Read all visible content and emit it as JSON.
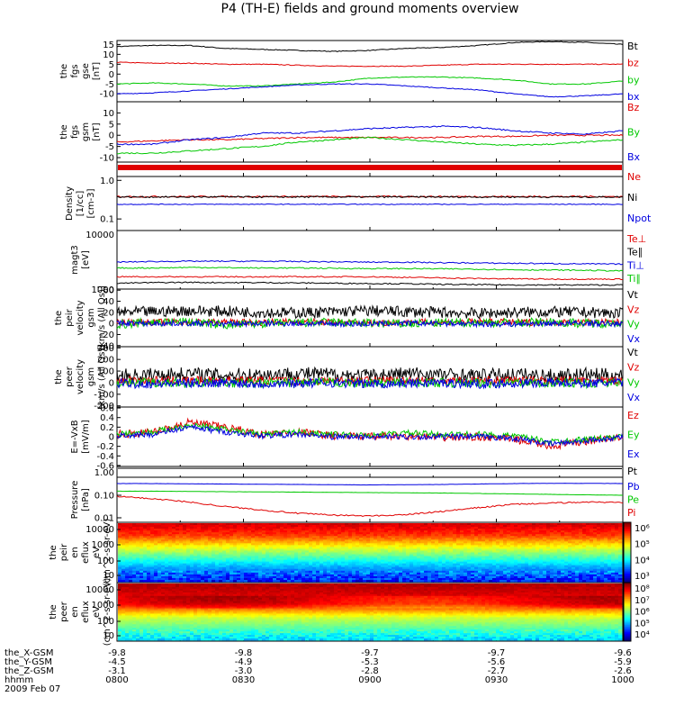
{
  "title": "P4 (TH-E) fields and ground moments overview",
  "colors": {
    "black": "#000000",
    "red": "#e00000",
    "green": "#00c800",
    "blue": "#0000e0",
    "frame": "#000000"
  },
  "chart_data": [
    {
      "type": "line",
      "ylabel": [
        "the",
        "fgs",
        "gse",
        "[nT]"
      ],
      "yticks": [
        15,
        10,
        5,
        0,
        -5,
        -10
      ],
      "ylim": [
        -14,
        17
      ],
      "series": [
        {
          "name": "Bt",
          "color": "black",
          "values": [
            14,
            14.5,
            14.5,
            13,
            12.5,
            12,
            11.5,
            12,
            13,
            13.5,
            14.5,
            16,
            16.5,
            16,
            15
          ]
        },
        {
          "name": "bz",
          "color": "red",
          "values": [
            6,
            5.5,
            5.5,
            5,
            5,
            4.5,
            4,
            4,
            4,
            4.5,
            5,
            5,
            5,
            5,
            5
          ]
        },
        {
          "name": "by",
          "color": "green",
          "values": [
            -5,
            -4.5,
            -5,
            -6,
            -6,
            -5,
            -4,
            -2,
            -1.5,
            -1.5,
            -2,
            -3,
            -5,
            -5,
            -3.5
          ]
        },
        {
          "name": "bx",
          "color": "blue",
          "values": [
            -10,
            -9.5,
            -8.5,
            -7.5,
            -6.5,
            -5.5,
            -5,
            -5,
            -6,
            -7,
            -8,
            -10,
            -11.5,
            -11,
            -10
          ]
        }
      ]
    },
    {
      "type": "line",
      "ylabel": [
        "the",
        "fgs",
        "gsm",
        "[nT]"
      ],
      "yticks": [
        10,
        5,
        0,
        -5,
        -10
      ],
      "ylim": [
        -12,
        15
      ],
      "series": [
        {
          "name": "Bz",
          "color": "red",
          "values": [
            -3,
            -2.5,
            -2,
            -2,
            -1.5,
            -1,
            -1,
            -1,
            -1,
            -1,
            -0.5,
            -0.5,
            0,
            0,
            0
          ]
        },
        {
          "name": "By",
          "color": "green",
          "values": [
            -8,
            -8,
            -7,
            -6,
            -5,
            -3,
            -2,
            -1,
            -2,
            -3,
            -4,
            -4.5,
            -4,
            -3,
            -2
          ]
        },
        {
          "name": "Bx",
          "color": "blue",
          "values": [
            -4,
            -4,
            -2,
            -1,
            1,
            1,
            2,
            3,
            3.5,
            4,
            3.5,
            2,
            1,
            0.5,
            2
          ]
        }
      ]
    },
    {
      "type": "line",
      "ylabel": [
        "Density",
        "[1/cc]",
        "[cm-3]"
      ],
      "yticks_label": [
        "1.0",
        "0.1"
      ],
      "ylim": [
        -1.3,
        0.1
      ],
      "log": true,
      "series": [
        {
          "name": "Ne",
          "color": "red",
          "values": [
            -0.42,
            -0.42,
            -0.42,
            -0.42,
            -0.42,
            -0.42,
            -0.42,
            -0.42,
            -0.42,
            -0.42,
            -0.42,
            -0.42,
            -0.42,
            -0.42,
            -0.42
          ]
        },
        {
          "name": "Ni",
          "color": "black",
          "values": [
            -0.43,
            -0.43,
            -0.43,
            -0.43,
            -0.43,
            -0.43,
            -0.43,
            -0.43,
            -0.43,
            -0.43,
            -0.43,
            -0.43,
            -0.43,
            -0.43,
            -0.43
          ]
        },
        {
          "name": "Npot",
          "color": "blue",
          "values": [
            -0.62,
            -0.62,
            -0.62,
            -0.62,
            -0.62,
            -0.62,
            -0.62,
            -0.62,
            -0.62,
            -0.62,
            -0.62,
            -0.62,
            -0.62,
            -0.62,
            -0.62
          ]
        }
      ]
    },
    {
      "type": "line",
      "ylabel": [
        "magt3",
        "[eV]"
      ],
      "yticks_label": [
        "10000",
        "1000"
      ],
      "log": true,
      "series": [
        {
          "name": "Te⊥",
          "color": "red",
          "values": [
            2.42,
            2.42,
            2.42,
            2.42,
            2.42,
            2.42,
            2.42,
            2.42,
            2.4,
            2.38,
            2.36,
            2.35,
            2.34,
            2.34,
            2.34
          ]
        },
        {
          "name": "Te∥",
          "color": "black",
          "values": [
            2.2,
            2.22,
            2.23,
            2.22,
            2.22,
            2.21,
            2.2,
            2.19,
            2.18,
            2.16,
            2.15,
            2.14,
            2.14,
            2.14,
            2.14
          ]
        },
        {
          "name": "Ti⊥",
          "color": "blue",
          "values": [
            2.92,
            2.94,
            2.95,
            2.95,
            2.95,
            2.94,
            2.93,
            2.92,
            2.92,
            2.9,
            2.89,
            2.88,
            2.87,
            2.86,
            2.85
          ]
        },
        {
          "name": "Ti∥",
          "color": "green",
          "values": [
            2.72,
            2.72,
            2.74,
            2.73,
            2.72,
            2.72,
            2.71,
            2.7,
            2.7,
            2.69,
            2.68,
            2.66,
            2.65,
            2.64,
            2.62
          ]
        }
      ]
    },
    {
      "type": "line",
      "ylabel": [
        "the",
        "peir",
        "velocity",
        "gsm",
        "[km/s (All Qs)]"
      ],
      "yticks": [
        60,
        40,
        20,
        0,
        -20,
        -40
      ],
      "ylim": [
        -42,
        62
      ],
      "series": [
        {
          "name": "Vt",
          "color": "black",
          "values": [
            20,
            21,
            23,
            22,
            20,
            19,
            21,
            23,
            21,
            20,
            18,
            20,
            21,
            20,
            18
          ]
        },
        {
          "name": "Vz",
          "color": "red",
          "values": [
            3,
            2,
            3,
            2,
            2,
            3,
            2,
            1,
            2,
            2,
            3,
            2,
            2,
            2,
            2
          ]
        },
        {
          "name": "Vy",
          "color": "green",
          "values": [
            -2,
            2,
            3,
            -3,
            0,
            1,
            2,
            0,
            -1,
            1,
            2,
            1,
            3,
            0,
            1
          ]
        },
        {
          "name": "Vx",
          "color": "blue",
          "values": [
            0,
            0,
            0,
            -1,
            0,
            0,
            -1,
            -1,
            0,
            0,
            -1,
            -1,
            0,
            0,
            -1
          ]
        }
      ]
    },
    {
      "type": "line",
      "ylabel": [
        "the",
        "peer",
        "velocity",
        "gsm",
        "[km/s (All Qs)]"
      ],
      "yticks": [
        300,
        200,
        100,
        0,
        -100,
        -200
      ],
      "ylim": [
        -210,
        310
      ],
      "series": [
        {
          "name": "Vt",
          "color": "black",
          "values": [
            60,
            70,
            75,
            65,
            70,
            80,
            70,
            60,
            80,
            70,
            60,
            70,
            60,
            70,
            60
          ]
        },
        {
          "name": "Vz",
          "color": "red",
          "values": [
            20,
            20,
            18,
            22,
            20,
            15,
            18,
            20,
            22,
            20,
            18,
            20,
            20,
            18,
            20
          ]
        },
        {
          "name": "Vy",
          "color": "green",
          "values": [
            0,
            0,
            -5,
            0,
            -5,
            0,
            0,
            -5,
            0,
            0,
            -5,
            0,
            0,
            -5,
            0
          ]
        },
        {
          "name": "Vx",
          "color": "blue",
          "values": [
            -5,
            -10,
            -5,
            0,
            -10,
            -5,
            0,
            -10,
            -5,
            0,
            -10,
            -5,
            0,
            -5,
            0
          ]
        }
      ]
    },
    {
      "type": "line",
      "ylabel": [
        "E=-VxB",
        "[mV/m]"
      ],
      "yticks": [
        0.6,
        0.4,
        0.2,
        0.0,
        -0.2,
        -0.4,
        -0.6
      ],
      "ylim": [
        -0.62,
        0.62
      ],
      "series": [
        {
          "name": "Ez",
          "color": "red",
          "values": [
            0.05,
            0.1,
            0.3,
            0.2,
            0.05,
            0.1,
            0.02,
            0,
            0.02,
            -0.02,
            0,
            -0.05,
            -0.2,
            -0.1,
            0
          ]
        },
        {
          "name": "Ey",
          "color": "green",
          "values": [
            0.05,
            0.1,
            0.25,
            0.15,
            0.05,
            0.1,
            0.05,
            0.03,
            0.08,
            0.05,
            0.05,
            0.02,
            -0.1,
            -0.05,
            0
          ]
        },
        {
          "name": "Ex",
          "color": "blue",
          "values": [
            0.02,
            0.05,
            0.2,
            0.1,
            0.02,
            0.05,
            0,
            0,
            0,
            0,
            0,
            -0.03,
            -0.15,
            -0.08,
            0
          ]
        }
      ]
    },
    {
      "type": "line",
      "ylabel": [],
      "yticks_label": [
        "1.00"
      ],
      "log": true,
      "series": [
        {
          "name": "Pt",
          "color": "black",
          "values": [
            0.08,
            0.08,
            0.08,
            0.08,
            0.08,
            0.08,
            0.08,
            0.08,
            0.08,
            0.08,
            0.08,
            0.08,
            0.08,
            0.08,
            0.08
          ]
        }
      ]
    },
    {
      "type": "line",
      "ylabel": [
        "Pressure",
        "[nPa]"
      ],
      "yticks_label": [
        "0.10",
        "0.01"
      ],
      "log": true,
      "series": [
        {
          "name": "Pb",
          "color": "blue",
          "values": [
            -0.48,
            -0.48,
            -0.49,
            -0.5,
            -0.51,
            -0.52,
            -0.53,
            -0.54,
            -0.53,
            -0.52,
            -0.5,
            -0.48,
            -0.47,
            -0.47,
            -0.48
          ]
        },
        {
          "name": "Pe",
          "color": "green",
          "values": [
            -0.82,
            -0.82,
            -0.83,
            -0.84,
            -0.85,
            -0.86,
            -0.87,
            -0.88,
            -0.89,
            -0.9,
            -0.92,
            -0.94,
            -0.96,
            -0.98,
            -1.0
          ]
        },
        {
          "name": "Pi",
          "color": "red",
          "values": [
            -1.05,
            -1.15,
            -1.3,
            -1.5,
            -1.65,
            -1.8,
            -1.88,
            -1.92,
            -1.86,
            -1.72,
            -1.55,
            -1.4,
            -1.35,
            -1.3,
            -1.32
          ]
        }
      ]
    },
    {
      "type": "heatmap",
      "ylabel": [
        "the",
        "peir",
        "en",
        "eflux",
        "eV",
        "(cm^2-s-sr-eV)"
      ],
      "yticks_label": [
        "10000",
        "1000",
        "100",
        "10"
      ],
      "colorbar": {
        "labels": [
          "10⁶",
          "10⁵",
          "10⁴",
          "10³"
        ],
        "min_exp": 2,
        "max_exp": 7
      }
    },
    {
      "type": "heatmap",
      "ylabel": [
        "the",
        "peer",
        "en",
        "eflux",
        "eV",
        "(cm^2-s-sr-eV)"
      ],
      "yticks_label": [
        "10000",
        "1000",
        "100",
        "10"
      ],
      "colorbar": {
        "labels": [
          "10⁸",
          "10⁷",
          "10⁶",
          "10⁵",
          "10⁴"
        ],
        "min_exp": 4,
        "max_exp": 9
      }
    }
  ],
  "xaxis": {
    "rows": [
      {
        "label": "the_X-GSM",
        "values": [
          "-9.8",
          "-9.8",
          "-9.7",
          "-9.7",
          "-9.6"
        ]
      },
      {
        "label": "the_Y-GSM",
        "values": [
          "-4.5",
          "-4.9",
          "-5.3",
          "-5.6",
          "-5.9"
        ]
      },
      {
        "label": "the_Z-GSM",
        "values": [
          "-3.1",
          "-3.0",
          "-2.8",
          "-2.7",
          "-2.6"
        ]
      },
      {
        "label": "hhmm",
        "values": [
          "0800",
          "0830",
          "0900",
          "0930",
          "1000"
        ]
      }
    ],
    "date": "2009 Feb 07"
  }
}
